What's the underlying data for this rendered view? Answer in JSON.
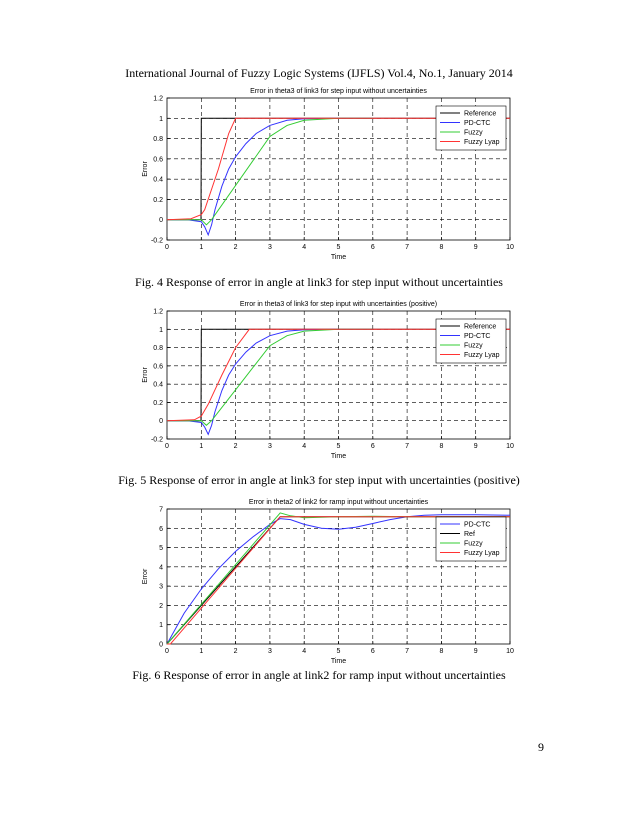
{
  "header": "International Journal of Fuzzy Logic Systems (IJFLS) Vol.4, No.1, January 2014",
  "page_number": "9",
  "figures": [
    {
      "caption": "Fig. 4 Response of error in angle at link3 for step input without uncertainties"
    },
    {
      "caption": "Fig. 5 Response of error in angle at link3 for step input with uncertainties (positive)"
    },
    {
      "caption": "Fig. 6 Response of error in angle at link2 for ramp input without uncertainties"
    }
  ],
  "chart_data": [
    {
      "type": "line",
      "title": "Error in theta3 of link3 for step input without uncertainties",
      "xlabel": "Time",
      "ylabel": "Error",
      "xlim": [
        0,
        10
      ],
      "ylim": [
        -0.2,
        1.2
      ],
      "xticks": [
        0,
        1,
        2,
        3,
        4,
        5,
        6,
        7,
        8,
        9,
        10
      ],
      "yticks": [
        -0.2,
        0,
        0.2,
        0.4,
        0.6,
        0.8,
        1,
        1.2
      ],
      "grid": true,
      "legend_position": "right",
      "series": [
        {
          "name": "Reference",
          "color": "#000000",
          "x": [
            0,
            0.99,
            1.0,
            10
          ],
          "y": [
            0,
            0,
            1,
            1
          ]
        },
        {
          "name": "PD-CTC",
          "color": "#3333ff",
          "x": [
            0,
            0.6,
            1.0,
            1.1,
            1.2,
            1.3,
            1.4,
            1.6,
            1.8,
            2.0,
            2.3,
            2.6,
            3.0,
            3.5,
            4.0,
            5.0,
            6.0
          ],
          "y": [
            0,
            0,
            -0.02,
            -0.07,
            -0.15,
            -0.05,
            0.1,
            0.33,
            0.5,
            0.62,
            0.75,
            0.85,
            0.93,
            0.98,
            0.995,
            1.0,
            1.0
          ]
        },
        {
          "name": "Fuzzy",
          "color": "#33cc33",
          "x": [
            0,
            1.0,
            1.15,
            1.3,
            3.0,
            3.5,
            4.0,
            5.0,
            6.0
          ],
          "y": [
            0,
            0,
            -0.05,
            0,
            0.82,
            0.93,
            0.98,
            1.0,
            1.0
          ]
        },
        {
          "name": "Fuzzy Lyap",
          "color": "#ff3333",
          "x": [
            0,
            0.7,
            1.0,
            1.1,
            1.5,
            1.8,
            2.0,
            10
          ],
          "y": [
            0,
            0.01,
            0.05,
            0.1,
            0.5,
            0.85,
            1.0,
            1.0
          ]
        }
      ]
    },
    {
      "type": "line",
      "title": "Error in theta3 of link3 for step input with uncertainties (positive)",
      "xlabel": "Time",
      "ylabel": "Error",
      "xlim": [
        0,
        10
      ],
      "ylim": [
        -0.2,
        1.2
      ],
      "xticks": [
        0,
        1,
        2,
        3,
        4,
        5,
        6,
        7,
        8,
        9,
        10
      ],
      "yticks": [
        -0.2,
        0,
        0.2,
        0.4,
        0.6,
        0.8,
        1,
        1.2
      ],
      "grid": true,
      "legend_position": "right",
      "series": [
        {
          "name": "Reference",
          "color": "#000000",
          "x": [
            0,
            0.99,
            1.0,
            10
          ],
          "y": [
            0,
            0,
            1,
            1
          ]
        },
        {
          "name": "PD-CTC",
          "color": "#3333ff",
          "x": [
            0,
            0.6,
            1.0,
            1.1,
            1.2,
            1.3,
            1.4,
            1.6,
            1.8,
            2.0,
            2.3,
            2.6,
            3.0,
            3.5,
            4.0,
            5.0,
            6.0
          ],
          "y": [
            0,
            0,
            -0.02,
            -0.07,
            -0.15,
            -0.05,
            0.1,
            0.33,
            0.5,
            0.62,
            0.75,
            0.85,
            0.93,
            0.98,
            0.995,
            1.0,
            1.0
          ]
        },
        {
          "name": "Fuzzy",
          "color": "#33cc33",
          "x": [
            0,
            1.0,
            1.15,
            1.3,
            3.0,
            3.5,
            4.0,
            5.0,
            6.0
          ],
          "y": [
            0,
            0,
            -0.05,
            0,
            0.82,
            0.93,
            0.98,
            1.0,
            1.0
          ]
        },
        {
          "name": "Fuzzy Lyap",
          "color": "#ff3333",
          "x": [
            0,
            0.8,
            1.0,
            1.2,
            1.6,
            2.0,
            2.4,
            10
          ],
          "y": [
            0,
            0.01,
            0.05,
            0.18,
            0.5,
            0.8,
            1.0,
            1.0
          ]
        }
      ]
    },
    {
      "type": "line",
      "title": "Error in theta2 of link2 for ramp input without uncertainties",
      "xlabel": "Time",
      "ylabel": "Error",
      "xlim": [
        0,
        10
      ],
      "ylim": [
        0,
        7
      ],
      "xticks": [
        0,
        1,
        2,
        3,
        4,
        5,
        6,
        7,
        8,
        9,
        10
      ],
      "yticks": [
        0,
        1,
        2,
        3,
        4,
        5,
        6,
        7
      ],
      "grid": true,
      "legend_position": "right",
      "series": [
        {
          "name": "PD-CTC",
          "color": "#3333ff",
          "x": [
            0,
            0.5,
            1,
            1.5,
            2,
            2.5,
            3,
            3.3,
            3.6,
            4,
            4.5,
            5,
            5.5,
            6,
            6.5,
            7,
            7.5,
            8,
            9,
            10
          ],
          "y": [
            0,
            1.6,
            2.85,
            3.9,
            4.8,
            5.55,
            6.2,
            6.5,
            6.45,
            6.2,
            6.0,
            5.95,
            6.05,
            6.25,
            6.45,
            6.6,
            6.68,
            6.7,
            6.7,
            6.68
          ]
        },
        {
          "name": "Ref",
          "color": "#000000",
          "x": [
            0,
            3.3,
            10
          ],
          "y": [
            0,
            6.6,
            6.6
          ]
        },
        {
          "name": "Fuzzy",
          "color": "#33cc33",
          "x": [
            0,
            3.3,
            3.6,
            4,
            5,
            6,
            7,
            8,
            9,
            10
          ],
          "y": [
            0,
            6.8,
            6.65,
            6.55,
            6.6,
            6.62,
            6.6,
            6.6,
            6.6,
            6.6
          ]
        },
        {
          "name": "Fuzzy Lyap",
          "color": "#ff3333",
          "x": [
            0,
            0.1,
            3.3,
            10
          ],
          "y": [
            0,
            0,
            6.6,
            6.6
          ]
        }
      ]
    }
  ]
}
